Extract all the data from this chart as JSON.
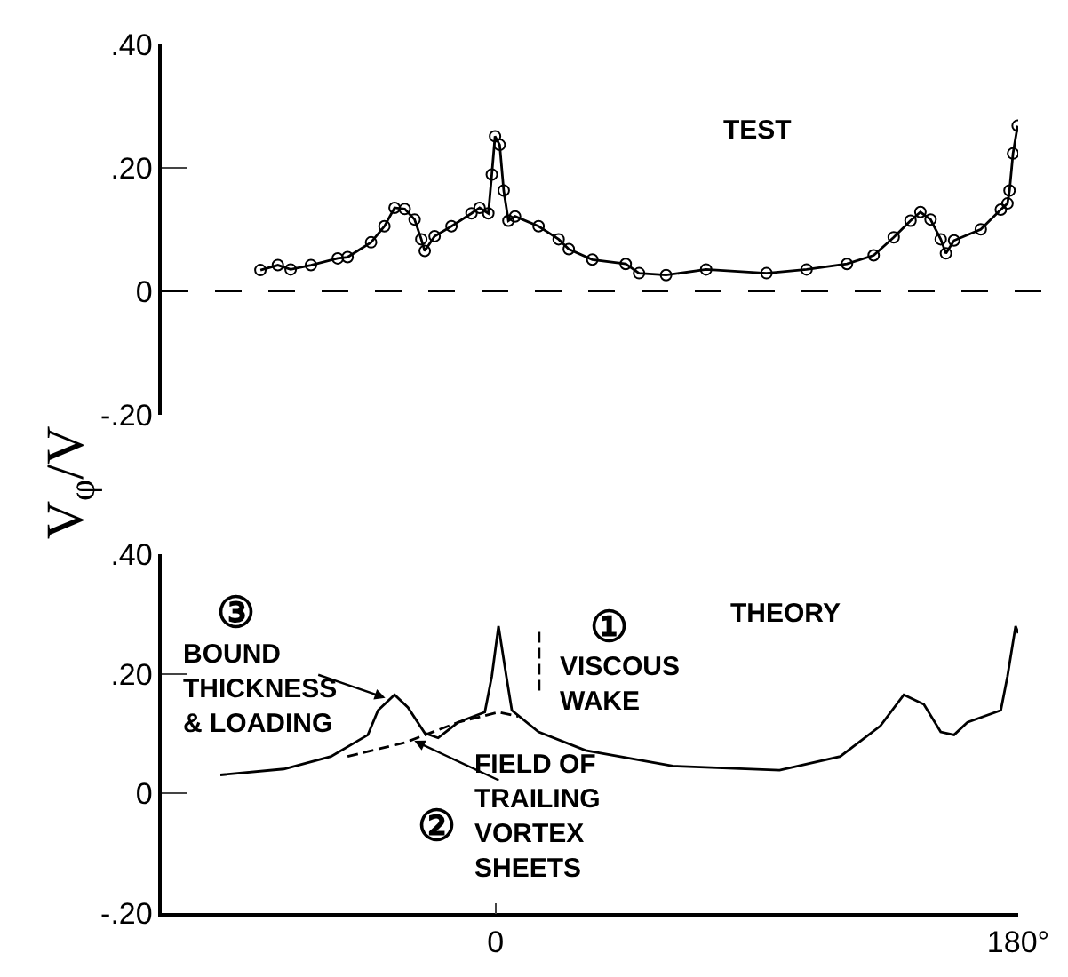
{
  "chart_data": [
    {
      "type": "line",
      "ylabel": "V$_{φ}$/V",
      "xlim": [
        -115,
        180
      ],
      "ylim": [
        -0.2,
        0.4
      ],
      "yticks": [
        {
          "value": 0.4,
          "label": ".40"
        },
        {
          "value": 0.2,
          "label": ".20"
        },
        0,
        {
          "value": -0.2,
          "label": "-.20"
        }
      ],
      "tick_labels": "y",
      "marker": "circle",
      "line_style": "solid",
      "annotations": [
        "TEST"
      ],
      "ref_lines": [
        {
          "axis": "y",
          "value": 0,
          "color": "#000000",
          "line_style": "dashed"
        }
      ],
      "series": [
        {
          "color": "#000000",
          "x": [
            -81,
            -75,
            -70.6,
            -63.6,
            -54.4,
            -51,
            -42.9,
            -38.3,
            -34.8,
            -31.3,
            -27.9,
            -25.6,
            -24.4,
            -21,
            -15.2,
            -8.3,
            -5.5,
            -2.5,
            -1.3,
            -0.2,
            1.4,
            2.8,
            4.4,
            6.7,
            14.8,
            21.7,
            25.2,
            33.3,
            44.8,
            49.4,
            58.7,
            72.5,
            93.3,
            107.1,
            121,
            130.2,
            137.1,
            142.9,
            146.3,
            149.8,
            153.3,
            155.1,
            157.9,
            167.1,
            174,
            176.3,
            177,
            178.2,
            179.8
          ],
          "values": [
            0.034,
            0.042,
            0.035,
            0.042,
            0.053,
            0.055,
            0.079,
            0.105,
            0.135,
            0.133,
            0.116,
            0.084,
            0.065,
            0.089,
            0.105,
            0.126,
            0.135,
            0.126,
            0.189,
            0.251,
            0.237,
            0.163,
            0.114,
            0.121,
            0.105,
            0.084,
            0.068,
            0.051,
            0.044,
            0.029,
            0.026,
            0.035,
            0.029,
            0.035,
            0.044,
            0.058,
            0.087,
            0.114,
            0.128,
            0.116,
            0.084,
            0.061,
            0.082,
            0.1,
            0.132,
            0.142,
            0.163,
            0.223,
            0.268
          ]
        }
      ]
    },
    {
      "type": "line",
      "xlim": [
        -115,
        180
      ],
      "ylim": [
        -0.2,
        0.4
      ],
      "xticks": [
        0,
        {
          "value": 180,
          "label": "180°"
        }
      ],
      "yticks": [
        {
          "value": 0.4,
          "label": ".40"
        },
        {
          "value": 0.2,
          "label": ".20"
        },
        0,
        {
          "value": -0.2,
          "label": "-.20"
        }
      ],
      "marker": "none",
      "line_style": "solid",
      "annotations": [
        "THEORY",
        "③",
        {
          "text": "BOUND\nTHICKNESS\n& LOADING",
          "x": -38,
          "y": 0.16
        },
        "①",
        "VISCOUS\nWAKE",
        {
          "text": "FIELD OF\nTRAILING\nVORTEX\nSHEETS",
          "x": -28,
          "y": 0.088
        },
        "②"
      ],
      "series": [
        {
          "color": "#000000",
          "x": [
            -94.8,
            -72.9,
            -56.7,
            -44,
            -40.5,
            -34.8,
            -30.2,
            -24.4,
            -19.8,
            -12.9,
            -3.7,
            -1.3,
            1,
            3.7,
            5.6,
            14.8,
            31,
            61,
            97.8,
            118.7,
            132.5,
            140.6,
            147.5,
            153.3,
            157.9,
            162.5,
            174,
            176.3,
            179.1,
            180
          ],
          "values": [
            0.031,
            0.041,
            0.062,
            0.098,
            0.139,
            0.165,
            0.144,
            0.101,
            0.093,
            0.119,
            0.136,
            0.196,
            0.28,
            0.196,
            0.139,
            0.103,
            0.072,
            0.046,
            0.039,
            0.062,
            0.113,
            0.165,
            0.149,
            0.103,
            0.098,
            0.119,
            0.139,
            0.196,
            0.28,
            0.268
          ]
        },
        {
          "color": "#000000",
          "line_style": "dashed",
          "x": [
            -51,
            -31.3,
            -12.9,
            1,
            7.8
          ],
          "values": [
            0.062,
            0.085,
            0.119,
            0.136,
            0.129
          ]
        },
        {
          "color": "#000000",
          "line_style": "dashed",
          "x": [
            15,
            15
          ],
          "values": [
            0.27,
            0.165
          ]
        }
      ]
    }
  ]
}
